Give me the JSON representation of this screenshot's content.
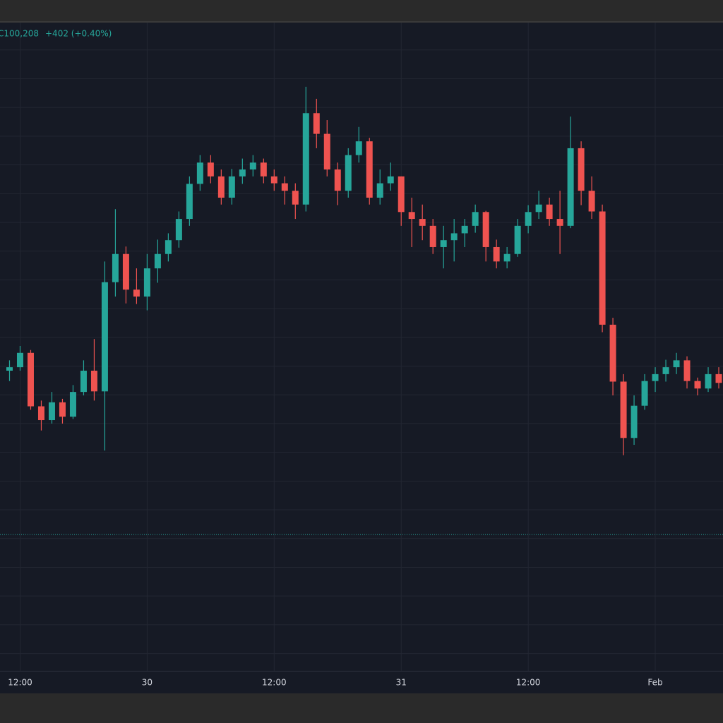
{
  "chart_data": {
    "type": "candlestick",
    "legend_close": "C100,208",
    "legend_change": "+402 (+0.40%)",
    "up_color": "#26a69a",
    "down_color": "#ef5350",
    "grid": true,
    "price_line": 97570,
    "xlim": [
      -1.9,
      66.4
    ],
    "xticks": [
      {
        "value": 0,
        "label": "12:00"
      },
      {
        "value": 12,
        "label": "30"
      },
      {
        "value": 24,
        "label": "12:00"
      },
      {
        "value": 36,
        "label": "31"
      },
      {
        "value": 48,
        "label": "12:00"
      },
      {
        "value": 60,
        "label": "Feb"
      }
    ],
    "ylim": [
      95200,
      106500
    ],
    "yticks": [
      95500,
      96000,
      96500,
      97000,
      97500,
      98000,
      98500,
      99000,
      99500,
      100000,
      100500,
      101000,
      101500,
      102000,
      102500,
      103000,
      103500,
      104000,
      104500,
      105000,
      105500,
      106000
    ],
    "x": [
      -1,
      0,
      1,
      2,
      3,
      4,
      5,
      6,
      7,
      8,
      9,
      10,
      11,
      12,
      13,
      14,
      15,
      16,
      17,
      18,
      19,
      20,
      21,
      22,
      23,
      24,
      25,
      26,
      27,
      28,
      29,
      30,
      31,
      32,
      33,
      34,
      35,
      36,
      37,
      38,
      39,
      40,
      41,
      42,
      43,
      44,
      45,
      46,
      47,
      48,
      49,
      50,
      51,
      52,
      53,
      54,
      55,
      56,
      57,
      58,
      59,
      60,
      61,
      62,
      63,
      64,
      65,
      66
    ],
    "open": [
      100420,
      100480,
      100730,
      99800,
      99560,
      99870,
      99620,
      100050,
      100420,
      100060,
      101960,
      102450,
      101830,
      101710,
      102200,
      102450,
      102690,
      103060,
      103670,
      104040,
      103800,
      103430,
      103800,
      103920,
      104040,
      103800,
      103680,
      103550,
      103310,
      104900,
      104540,
      103920,
      103550,
      104170,
      104410,
      103430,
      103680,
      103800,
      103180,
      103060,
      102940,
      102570,
      102690,
      102810,
      102940,
      103180,
      102570,
      102320,
      102450,
      102940,
      103180,
      103310,
      103060,
      102940,
      104290,
      103550,
      103190,
      101220,
      100230,
      99250,
      99810,
      100240,
      100360,
      100480,
      100600,
      100240,
      100110,
      100360
    ],
    "high": [
      100600,
      100850,
      100780,
      99900,
      100050,
      99930,
      100170,
      100600,
      100970,
      102320,
      103230,
      102580,
      102200,
      102450,
      102700,
      102810,
      103190,
      103800,
      104170,
      104170,
      103920,
      103930,
      104110,
      104170,
      104110,
      103920,
      103800,
      103680,
      105360,
      105150,
      104780,
      104040,
      104290,
      104660,
      104470,
      103920,
      104040,
      103800,
      103430,
      103310,
      103060,
      102940,
      103060,
      103060,
      103310,
      103200,
      102700,
      102570,
      103060,
      103300,
      103550,
      103430,
      103550,
      104840,
      104410,
      103800,
      103310,
      101340,
      100360,
      99990,
      100360,
      100480,
      100610,
      100730,
      100670,
      100300,
      100480,
      100480
    ],
    "low": [
      100240,
      100420,
      99740,
      99380,
      99500,
      99500,
      99580,
      99990,
      99900,
      99030,
      101710,
      101590,
      101580,
      101470,
      101950,
      102320,
      102560,
      102940,
      103550,
      103680,
      103310,
      103310,
      103670,
      103800,
      103680,
      103550,
      103310,
      103060,
      103190,
      104290,
      103800,
      103300,
      103430,
      104040,
      103310,
      103310,
      103550,
      102940,
      102570,
      102690,
      102450,
      102200,
      102320,
      102570,
      102820,
      102320,
      102200,
      102200,
      102400,
      102810,
      103060,
      102940,
      102450,
      102900,
      103300,
      103060,
      101090,
      99990,
      98950,
      99130,
      99740,
      100050,
      100230,
      100360,
      100110,
      99990,
      100050,
      100110
    ],
    "close": [
      100480,
      100730,
      99800,
      99560,
      99870,
      99620,
      100050,
      100420,
      100060,
      101960,
      102450,
      101830,
      101710,
      102200,
      102450,
      102690,
      103060,
      103670,
      104040,
      103800,
      103430,
      103800,
      103920,
      104040,
      103800,
      103680,
      103550,
      103310,
      104900,
      104540,
      103920,
      103550,
      104170,
      104410,
      103430,
      103680,
      103800,
      103180,
      103060,
      102940,
      102570,
      102690,
      102810,
      102940,
      103180,
      102570,
      102320,
      102450,
      102940,
      103180,
      103310,
      103060,
      102940,
      104290,
      103550,
      103190,
      101220,
      100230,
      99250,
      99810,
      100240,
      100360,
      100480,
      100600,
      100240,
      100110,
      100360,
      100208
    ]
  }
}
